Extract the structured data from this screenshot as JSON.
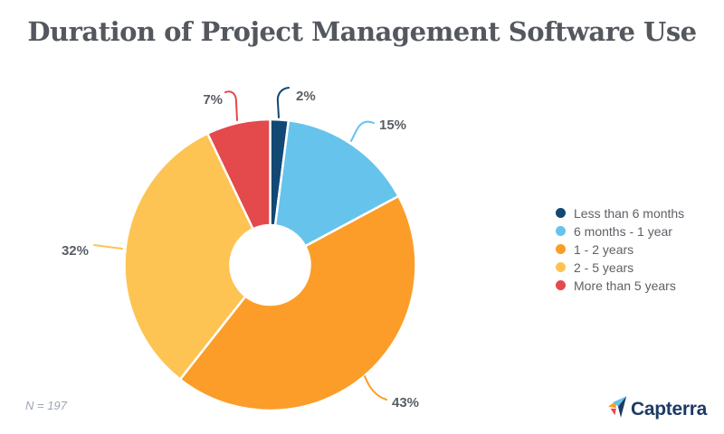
{
  "header": {
    "title": "Duration of Project Management Software Use"
  },
  "chart_data": {
    "type": "pie",
    "variant": "donut",
    "title": "Duration of Project Management Software Use",
    "legend_position": "right",
    "segments": [
      {
        "label": "Less than 6 months",
        "value": 2,
        "display": "2%",
        "color": "#114874"
      },
      {
        "label": "6 months - 1 year",
        "value": 15,
        "display": "15%",
        "color": "#66C3EC"
      },
      {
        "label": "1 - 2 years",
        "value": 43,
        "display": "43%",
        "color": "#FB9D28"
      },
      {
        "label": "2 - 5 years",
        "value": 32,
        "display": "32%",
        "color": "#FDC453"
      },
      {
        "label": "More than 5 years",
        "value": 7,
        "display": "7%",
        "color": "#E4494B"
      }
    ]
  },
  "footer": {
    "sample_note": "N = 197",
    "brand": "Capterra"
  }
}
